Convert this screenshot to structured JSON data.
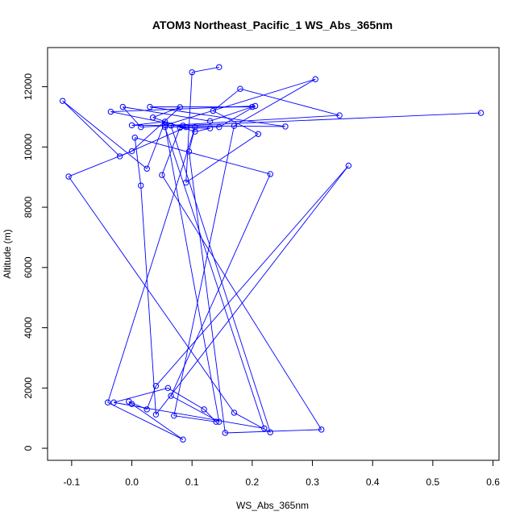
{
  "chart_data": {
    "type": "line",
    "title": "ATOM3 Northeast_Pacific_1 WS_Abs_365nm",
    "xlabel": "WS_Abs_365nm",
    "ylabel": "Altitude (m)",
    "xlim": [
      -0.14,
      0.61
    ],
    "ylim": [
      -400,
      13300
    ],
    "xticks": [
      -0.1,
      0.0,
      0.1,
      0.2,
      0.3,
      0.4,
      0.5,
      0.6
    ],
    "xtick_labels": [
      "-0.1",
      "0.0",
      "0.1",
      "0.2",
      "0.3",
      "0.4",
      "0.5",
      "0.6"
    ],
    "yticks": [
      0,
      2000,
      4000,
      6000,
      8000,
      10000,
      12000
    ],
    "ytick_labels": [
      "0",
      "2000",
      "4000",
      "6000",
      "8000",
      "10000",
      "12000"
    ],
    "grid": false,
    "series_color": "#0000ff",
    "series": [
      {
        "x": [
          0.145,
          0.1,
          0.09,
          0.21,
          0.135,
          0.18,
          0.345,
          0.015,
          -0.015,
          0.13,
          0.2,
          0.03,
          0.255,
          0.065,
          0.23,
          0.17,
          -0.105,
          0.0,
          0.08,
          0.035,
          0.105,
          0.13,
          0.08,
          0.05,
          0.315,
          0.155,
          0.095,
          0.105,
          -0.04,
          0.085,
          0.0,
          -0.005,
          0.025,
          0.04,
          0.36,
          0.04,
          0.015,
          0.005,
          0.23,
          0.065,
          0.145,
          0.055,
          0.305,
          0.17,
          0.07,
          0.14,
          0.12,
          0.06,
          -0.03,
          0.22,
          0.055,
          0.145,
          0.205,
          -0.035,
          0.09,
          -0.02,
          -0.115,
          0.025,
          0.055,
          0.0,
          0.085,
          0.58
        ],
        "y": [
          12650,
          12480,
          8820,
          10430,
          11200,
          11930,
          11050,
          10660,
          11330,
          10860,
          11330,
          11330,
          10680,
          10710,
          530,
          1180,
          9020,
          9860,
          11320,
          10980,
          10510,
          10620,
          10640,
          9070,
          620,
          510,
          9850,
          10660,
          1520,
          290,
          1470,
          1550,
          1290,
          2070,
          9380,
          1120,
          8720,
          10310,
          9100,
          1740,
          880,
          10720,
          12250,
          10700,
          1080,
          880,
          1290,
          2000,
          1520,
          660,
          10660,
          10660,
          11360,
          11170,
          10660,
          9690,
          11530,
          9280,
          10840,
          10720,
          10710,
          11130
        ]
      }
    ]
  }
}
